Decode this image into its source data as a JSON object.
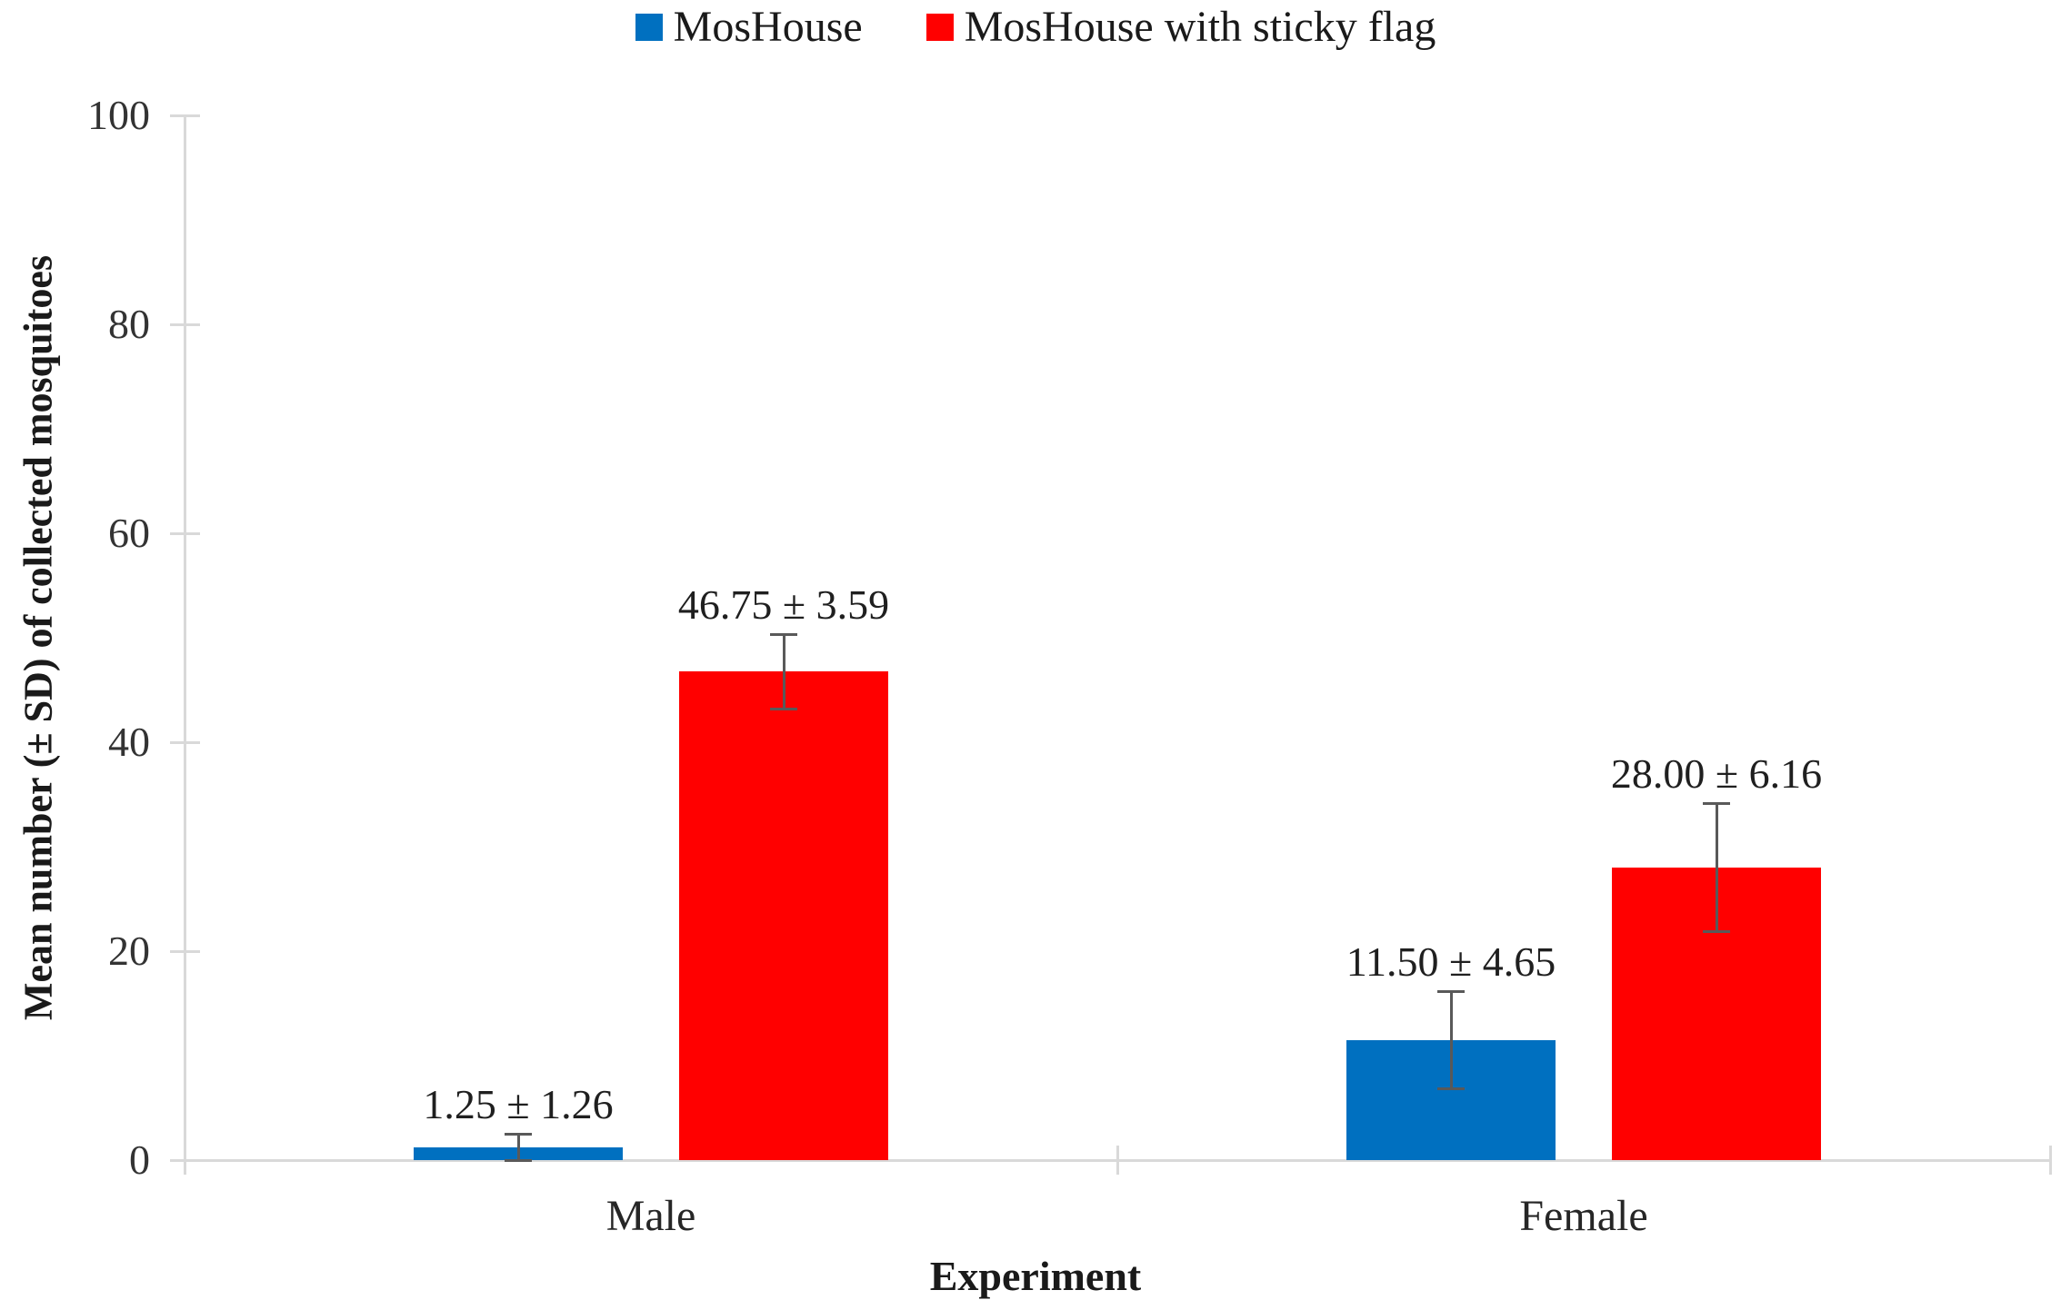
{
  "chart_data": {
    "type": "bar",
    "title": "",
    "xlabel": "Experiment",
    "ylabel": "Mean number (± SD) of collected mosquitoes",
    "categories": [
      "Male",
      "Female"
    ],
    "series": [
      {
        "name": "MosHouse",
        "color": "#0070C0",
        "values": [
          1.25,
          11.5
        ],
        "sd": [
          1.26,
          4.65
        ],
        "value_labels": [
          "1.25 ± 1.26",
          "11.50 ± 4.65"
        ]
      },
      {
        "name": "MosHouse with sticky flag",
        "color": "#FF0000",
        "values": [
          46.75,
          28.0
        ],
        "sd": [
          3.59,
          6.16
        ],
        "value_labels": [
          "46.75 ± 3.59",
          "28.00 ± 6.16"
        ]
      }
    ],
    "ylim": [
      0,
      100
    ],
    "ytick_step": 20,
    "ytick_labels": [
      "0",
      "20",
      "40",
      "60",
      "80",
      "100"
    ],
    "grid": false,
    "legend_position": "top-center",
    "error_bars": true
  },
  "colors": {
    "axis_line": "#D9D9D9",
    "error_bar": "#595959",
    "text": "#1F1F1F"
  }
}
